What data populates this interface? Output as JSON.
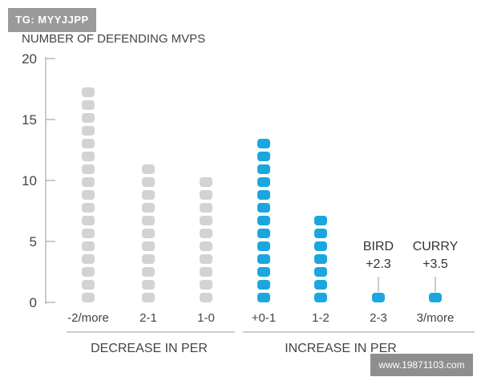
{
  "watermark_top": "TG: MYYJJPP",
  "watermark_bottom": "www.19871103.com",
  "chart_data": {
    "type": "bar",
    "title": "",
    "ylabel": "NUMBER OF DEFENDING MVPS",
    "xlabel": "",
    "ylim": [
      0,
      20
    ],
    "yticks": [
      0,
      5,
      10,
      15,
      20
    ],
    "grid": false,
    "categories": [
      "-2/more",
      "2-1",
      "1-0",
      "+0-1",
      "1-2",
      "2-3",
      "3/more"
    ],
    "values": [
      17,
      11,
      10,
      13,
      7,
      1,
      1
    ],
    "groups": [
      {
        "label": "DECREASE IN PER",
        "categories": [
          "-2/more",
          "2-1",
          "1-0"
        ],
        "color": "#d3d3d3"
      },
      {
        "label": "INCREASE IN PER",
        "categories": [
          "+0-1",
          "1-2",
          "2-3",
          "3/more"
        ],
        "color": "#1aa7e0"
      }
    ],
    "annotations": [
      {
        "category": "2-3",
        "name": "BIRD",
        "value": "+2.3"
      },
      {
        "category": "3/more",
        "name": "CURRY",
        "value": "+3.5"
      }
    ]
  }
}
